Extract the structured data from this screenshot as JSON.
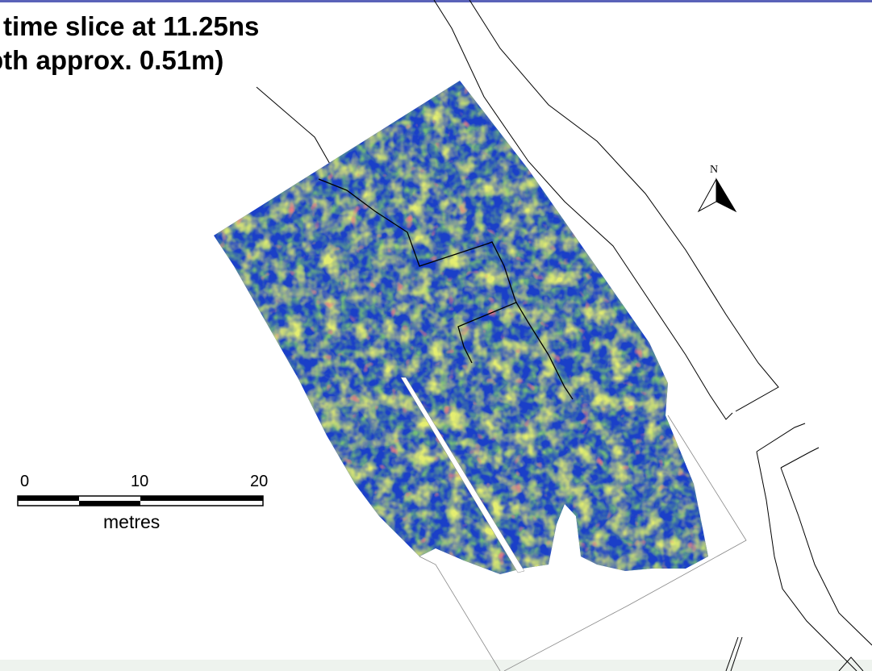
{
  "title": {
    "line1": "time slice at 11.25ns",
    "line2": "pth approx. 0.51m)"
  },
  "scale_bar": {
    "ticks": [
      "0",
      "10",
      "20"
    ],
    "unit": "metres"
  },
  "north_arrow": {
    "label": "N"
  },
  "colors": {
    "low": "#0f2bb0",
    "mid_low": "#1f56d8",
    "mid": "#2e8a2a",
    "mid_high": "#c8dc2a",
    "high": "#ffe84a",
    "peak": "#d8353c",
    "accent_rule": "#5a62b8"
  }
}
